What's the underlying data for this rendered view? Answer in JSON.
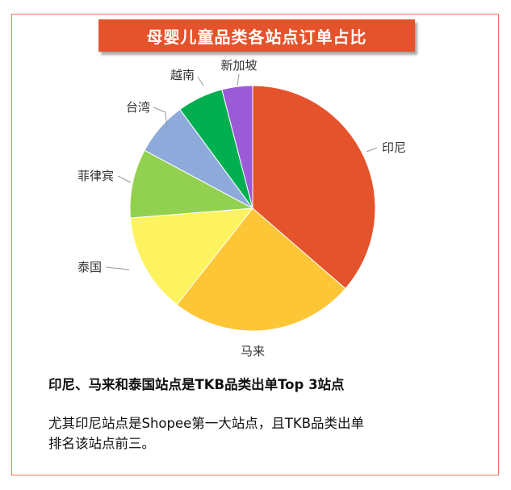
{
  "title": "母婴儿童品类各站点订单占比",
  "chart_data": {
    "type": "pie",
    "title": "母婴儿童品类各站点订单占比",
    "categories": [
      "印尼",
      "马来",
      "泰国",
      "菲律宾",
      "台湾",
      "越南",
      "新加坡"
    ],
    "values": [
      36,
      24,
      13,
      9,
      7,
      6,
      4
    ],
    "colors": [
      "#e4532b",
      "#fdc636",
      "#fdf35f",
      "#92d050",
      "#8eaadb",
      "#00b050",
      "#9b5bd6"
    ],
    "legend": "none",
    "labels": "outside"
  },
  "text": {
    "headline": "印尼、马来和泰国站点是TKB品类出单Top 3站点",
    "line1": "尤其印尼站点是Shopee第一大站点，且TKB品类出单",
    "line2": "排名该站点前三。"
  }
}
